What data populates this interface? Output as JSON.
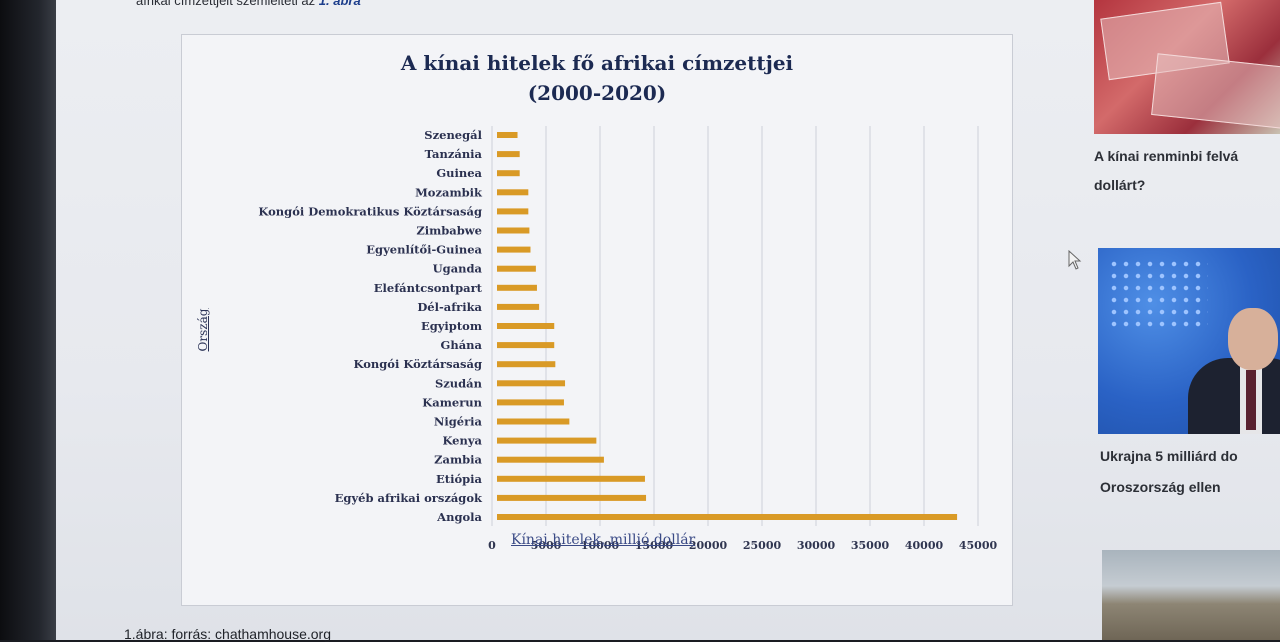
{
  "article": {
    "intro_text": "afrikai címzettjeit szemlélteti az ",
    "intro_ref": "1. ábra",
    "caption": "1.ábra: forrás: chathamhouse.org"
  },
  "chart_data": {
    "type": "bar",
    "orientation": "horizontal",
    "title": "A kínai hitelek fő afrikai címzettjei",
    "subtitle": "(2000-2020)",
    "xlabel": "Kínai hitelek, millió dollár",
    "ylabel": "Ország",
    "xlim": [
      0,
      45000
    ],
    "xticks": [
      "0",
      "5000",
      "10000",
      "15000",
      "20000",
      "25000",
      "30000",
      "35000",
      "40000",
      "45000"
    ],
    "grid": "vertical",
    "bar_color": "#d99a26",
    "categories": [
      "Szenegál",
      "Tanzánia",
      "Guinea",
      "Mozambik",
      "Kongói Demokratikus Köztársaság",
      "Zimbabwe",
      "Egyenlítői-Guinea",
      "Uganda",
      "Elefántcsontpart",
      "Dél-afrika",
      "Egyiptom",
      "Ghána",
      "Kongói Köztársaság",
      "Szudán",
      "Kamerun",
      "Nigéria",
      "Kenya",
      "Zambia",
      "Etiópia",
      "Egyéb afrikai országok",
      "Angola"
    ],
    "values": [
      1900,
      2100,
      2100,
      2900,
      2900,
      3000,
      3100,
      3600,
      3700,
      3900,
      5300,
      5300,
      5400,
      6300,
      6200,
      6700,
      9200,
      9900,
      13700,
      13800,
      42600
    ]
  },
  "sidebar": {
    "story1_line1": "A kínai renminbi felvá",
    "story1_line2": "dollárt?",
    "story2_line1": "Ukrajna 5 milliárd do",
    "story2_line2": "Oroszország ellen"
  }
}
